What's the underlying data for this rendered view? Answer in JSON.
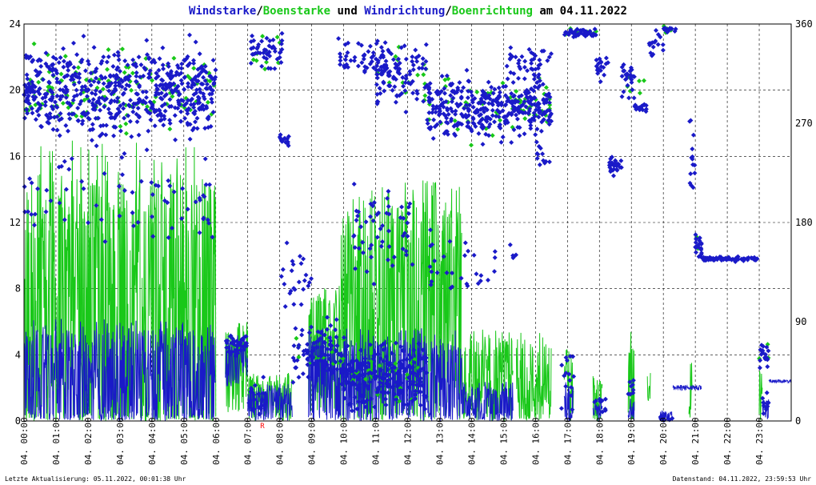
{
  "chart_data": {
    "type": "scatter",
    "title_parts": [
      {
        "text": "Windstarke",
        "role": "wind"
      },
      {
        "text": "/",
        "role": "plain"
      },
      {
        "text": "Boenstarke",
        "role": "gust"
      },
      {
        "text": " und ",
        "role": "plain"
      },
      {
        "text": "Windrichtung",
        "role": "wind"
      },
      {
        "text": "/",
        "role": "plain"
      },
      {
        "text": "Boenrichtung",
        "role": "gust"
      },
      {
        "text": " am 04.11.2022",
        "role": "plain"
      }
    ],
    "left_axis": {
      "ticks": [
        0,
        4,
        8,
        12,
        16,
        20,
        24
      ],
      "ylim": [
        0,
        24
      ]
    },
    "right_axis": {
      "ticks": [
        0,
        90,
        180,
        270,
        360
      ],
      "ylim": [
        0,
        360
      ]
    },
    "x_ticks": [
      "04. 00:00",
      "04. 01:00",
      "04. 02:00",
      "04. 03:00",
      "04. 04:00",
      "04. 05:00",
      "04. 06:00",
      "04. 07:00",
      "04. 08:00",
      "04. 09:00",
      "04. 10:00",
      "04. 11:00",
      "04. 12:00",
      "04. 13:00",
      "04. 14:00",
      "04. 15:00",
      "04. 16:00",
      "04. 17:00",
      "04. 18:00",
      "04. 19:00",
      "04. 20:00",
      "04. 21:00",
      "04. 22:00",
      "04. 23:00"
    ],
    "xlim_hours": [
      0,
      24
    ],
    "grid": true,
    "marker_label": "R",
    "colors": {
      "wind": "#1a1ac8",
      "gust": "#19c819",
      "axes": "#000000",
      "grid": "#000000"
    },
    "series": [
      {
        "name": "Windstarke",
        "axis": "left",
        "style": "line",
        "color": "#1a1ac8",
        "segments": [
          {
            "from": 0.0,
            "to": 6.0,
            "base": 2.0,
            "spread": 3.5
          },
          {
            "from": 6.3,
            "to": 7.0,
            "base": 3.5,
            "spread": 1.5
          },
          {
            "from": 7.0,
            "to": 8.4,
            "base": 0.8,
            "spread": 1.2
          },
          {
            "from": 8.9,
            "to": 9.9,
            "base": 2.0,
            "spread": 3.0
          },
          {
            "from": 9.9,
            "to": 13.7,
            "base": 2.0,
            "spread": 3.0
          },
          {
            "from": 13.7,
            "to": 15.3,
            "base": 0.6,
            "spread": 1.5
          },
          {
            "from": 16.9,
            "to": 17.2,
            "base": 0.6,
            "spread": 1.5
          },
          {
            "from": 17.8,
            "to": 18.1,
            "base": 0.4,
            "spread": 0.6
          },
          {
            "from": 18.9,
            "to": 19.1,
            "base": 0.4,
            "spread": 0.8
          },
          {
            "from": 19.9,
            "to": 20.3,
            "base": 0.3,
            "spread": 0.3
          },
          {
            "from": 20.3,
            "to": 21.2,
            "base": 2.0,
            "spread": 0.15
          },
          {
            "from": 23.1,
            "to": 23.3,
            "base": 0.6,
            "spread": 0.6
          },
          {
            "from": 23.3,
            "to": 24.0,
            "base": 2.4,
            "spread": 0.1
          }
        ]
      },
      {
        "name": "Boenstarke",
        "axis": "left",
        "style": "line",
        "color": "#19c819",
        "segments": [
          {
            "from": 0.0,
            "to": 6.0,
            "base": 5.0,
            "spread": 10.0
          },
          {
            "from": 6.3,
            "to": 7.0,
            "base": 3.0,
            "spread": 2.5
          },
          {
            "from": 7.0,
            "to": 8.4,
            "base": 1.2,
            "spread": 1.5
          },
          {
            "from": 8.9,
            "to": 9.9,
            "base": 4.0,
            "spread": 3.5
          },
          {
            "from": 9.9,
            "to": 13.7,
            "base": 5.0,
            "spread": 8.0
          },
          {
            "from": 13.7,
            "to": 15.3,
            "base": 2.0,
            "spread": 3.0
          },
          {
            "from": 15.4,
            "to": 16.5,
            "base": 2.0,
            "spread": 2.8
          },
          {
            "from": 16.9,
            "to": 17.2,
            "base": 2.0,
            "spread": 2.0
          },
          {
            "from": 17.8,
            "to": 18.1,
            "base": 1.0,
            "spread": 1.5
          },
          {
            "from": 18.9,
            "to": 19.1,
            "base": 2.0,
            "spread": 3.0
          },
          {
            "from": 19.5,
            "to": 19.6,
            "base": 2.0,
            "spread": 1.0
          },
          {
            "from": 20.8,
            "to": 20.9,
            "base": 2.0,
            "spread": 2.0
          },
          {
            "from": 23.0,
            "to": 23.1,
            "base": 1.0,
            "spread": 2.0
          }
        ]
      },
      {
        "name": "Windrichtung",
        "axis": "right",
        "style": "points",
        "color": "#1a1ac8",
        "clusters": [
          {
            "from": 0.0,
            "to": 6.0,
            "center": 300,
            "spread": 55,
            "count": 620
          },
          {
            "from": 0.0,
            "to": 6.0,
            "center": 200,
            "spread": 60,
            "count": 70
          },
          {
            "from": 6.3,
            "to": 7.0,
            "center": 70,
            "spread": 15,
            "count": 45
          },
          {
            "from": 7.0,
            "to": 7.5,
            "center": 20,
            "spread": 25,
            "count": 20
          },
          {
            "from": 7.1,
            "to": 8.1,
            "center": 335,
            "spread": 25,
            "count": 45
          },
          {
            "from": 8.0,
            "to": 8.3,
            "center": 255,
            "spread": 10,
            "count": 14
          },
          {
            "from": 8.0,
            "to": 9.0,
            "center": 130,
            "spread": 45,
            "count": 24
          },
          {
            "from": 8.4,
            "to": 10.0,
            "center": 65,
            "spread": 40,
            "count": 90
          },
          {
            "from": 9.8,
            "to": 11.5,
            "center": 330,
            "spread": 25,
            "count": 60
          },
          {
            "from": 9.9,
            "to": 12.6,
            "center": 40,
            "spread": 40,
            "count": 220
          },
          {
            "from": 10.3,
            "to": 12.2,
            "center": 170,
            "spread": 60,
            "count": 55
          },
          {
            "from": 11.0,
            "to": 12.6,
            "center": 310,
            "spread": 40,
            "count": 90
          },
          {
            "from": 12.6,
            "to": 16.5,
            "center": 285,
            "spread": 38,
            "count": 360
          },
          {
            "from": 12.6,
            "to": 15.5,
            "center": 140,
            "spread": 50,
            "count": 35
          },
          {
            "from": 15.0,
            "to": 16.5,
            "center": 325,
            "spread": 25,
            "count": 40
          },
          {
            "from": 16.0,
            "to": 16.5,
            "center": 240,
            "spread": 20,
            "count": 12
          },
          {
            "from": 16.8,
            "to": 17.2,
            "center": 40,
            "spread": 45,
            "count": 15
          },
          {
            "from": 16.9,
            "to": 17.9,
            "center": 352,
            "spread": 5,
            "count": 40
          },
          {
            "from": 17.9,
            "to": 18.3,
            "center": 320,
            "spread": 15,
            "count": 18
          },
          {
            "from": 18.3,
            "to": 18.7,
            "center": 232,
            "spread": 12,
            "count": 30
          },
          {
            "from": 17.8,
            "to": 18.2,
            "center": 15,
            "spread": 12,
            "count": 12
          },
          {
            "from": 18.7,
            "to": 19.1,
            "center": 310,
            "spread": 25,
            "count": 28
          },
          {
            "from": 18.9,
            "to": 19.1,
            "center": 25,
            "spread": 20,
            "count": 8
          },
          {
            "from": 19.1,
            "to": 19.5,
            "center": 285,
            "spread": 5,
            "count": 20
          },
          {
            "from": 19.5,
            "to": 20.0,
            "center": 340,
            "spread": 20,
            "count": 16
          },
          {
            "from": 19.9,
            "to": 20.3,
            "center": 2,
            "spread": 3,
            "count": 10
          },
          {
            "from": 20.0,
            "to": 20.4,
            "center": 355,
            "spread": 4,
            "count": 12
          },
          {
            "from": 20.8,
            "to": 21.0,
            "center": 240,
            "spread": 60,
            "count": 14
          },
          {
            "from": 21.0,
            "to": 21.2,
            "center": 160,
            "spread": 20,
            "count": 20
          },
          {
            "from": 21.2,
            "to": 23.0,
            "center": 147,
            "spread": 3,
            "count": 80
          },
          {
            "from": 23.0,
            "to": 23.3,
            "center": 60,
            "spread": 15,
            "count": 20
          },
          {
            "from": 23.1,
            "to": 23.3,
            "center": 15,
            "spread": 15,
            "count": 12
          }
        ]
      },
      {
        "name": "Boenrichtung",
        "axis": "right",
        "style": "points",
        "color": "#19c819",
        "clusters": [
          {
            "from": 0.0,
            "to": 6.0,
            "center": 300,
            "spread": 50,
            "count": 130
          },
          {
            "from": 6.3,
            "to": 7.0,
            "center": 70,
            "spread": 15,
            "count": 6
          },
          {
            "from": 7.1,
            "to": 8.1,
            "center": 335,
            "spread": 25,
            "count": 10
          },
          {
            "from": 8.5,
            "to": 10.0,
            "center": 60,
            "spread": 40,
            "count": 12
          },
          {
            "from": 9.9,
            "to": 12.6,
            "center": 40,
            "spread": 40,
            "count": 35
          },
          {
            "from": 11.0,
            "to": 12.6,
            "center": 310,
            "spread": 40,
            "count": 15
          },
          {
            "from": 12.6,
            "to": 16.5,
            "center": 285,
            "spread": 38,
            "count": 60
          },
          {
            "from": 16.9,
            "to": 17.9,
            "center": 352,
            "spread": 5,
            "count": 8
          },
          {
            "from": 18.7,
            "to": 19.5,
            "center": 300,
            "spread": 25,
            "count": 6
          },
          {
            "from": 20.0,
            "to": 20.4,
            "center": 355,
            "spread": 4,
            "count": 4
          },
          {
            "from": 21.0,
            "to": 21.2,
            "center": 160,
            "spread": 15,
            "count": 3
          },
          {
            "from": 23.0,
            "to": 23.3,
            "center": 60,
            "spread": 15,
            "count": 3
          }
        ]
      }
    ]
  },
  "footer": {
    "left": "Letzte Aktualisierung: 05.11.2022, 00:01:38 Uhr",
    "right": "Datenstand: 04.11.2022, 23:59:53 Uhr"
  }
}
